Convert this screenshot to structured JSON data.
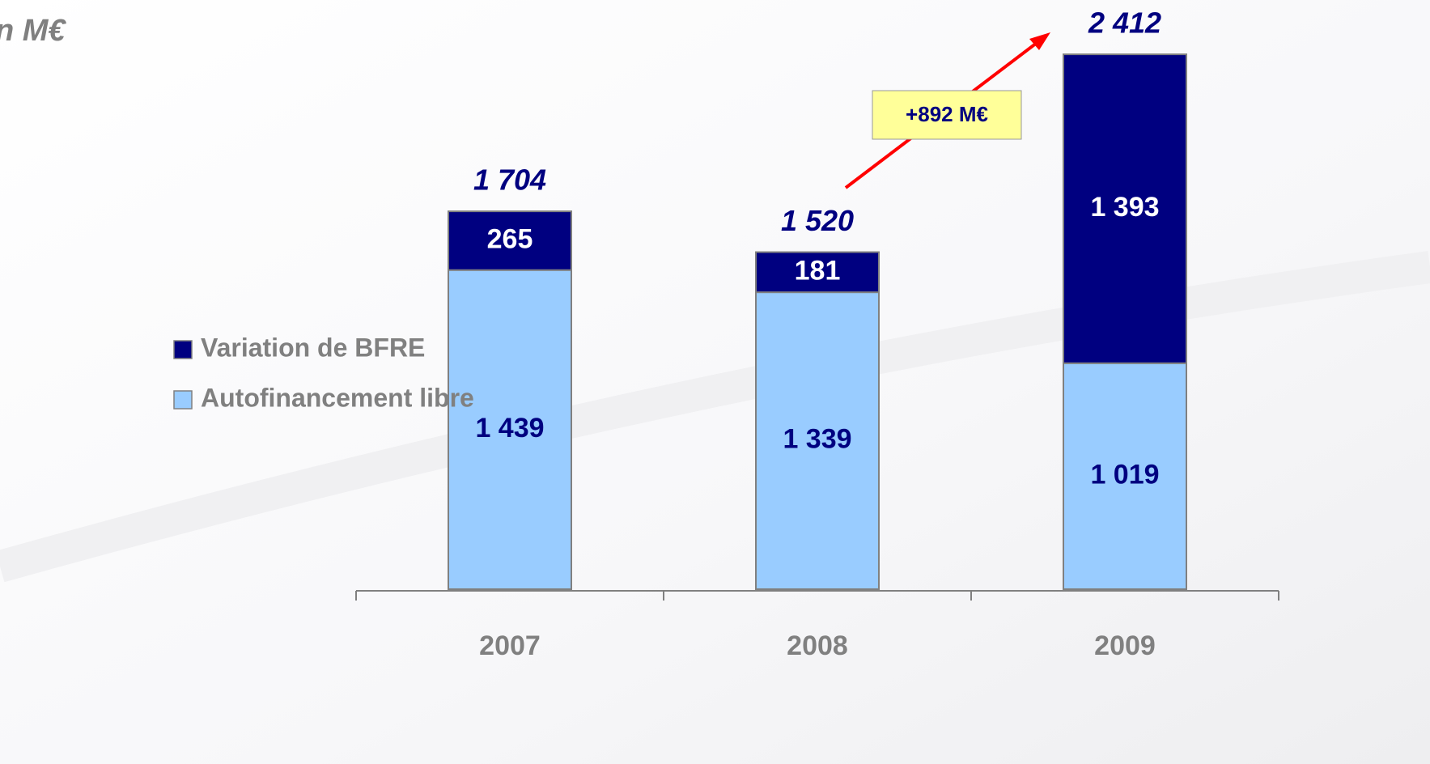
{
  "chart_data": {
    "type": "stacked_bar",
    "unit_label": "n M€",
    "categories": [
      "2007",
      "2008",
      "2009"
    ],
    "series": [
      {
        "name": "Autofinancement libre",
        "color": "#99ccff",
        "label_color": "#000080",
        "values": [
          1439,
          1339,
          1019
        ],
        "value_labels": [
          "1 439",
          "1 339",
          "1 019"
        ]
      },
      {
        "name": "Variation de BFRE",
        "color": "#000080",
        "label_color": "#ffffff",
        "values": [
          265,
          181,
          1393
        ],
        "value_labels": [
          "265",
          "181",
          "1 393"
        ]
      }
    ],
    "totals": [
      1704,
      1520,
      2412
    ],
    "total_labels": [
      "1 704",
      "1 520",
      "2 412"
    ],
    "annotation": "+892 M€",
    "ylim": [
      0,
      2500
    ]
  }
}
